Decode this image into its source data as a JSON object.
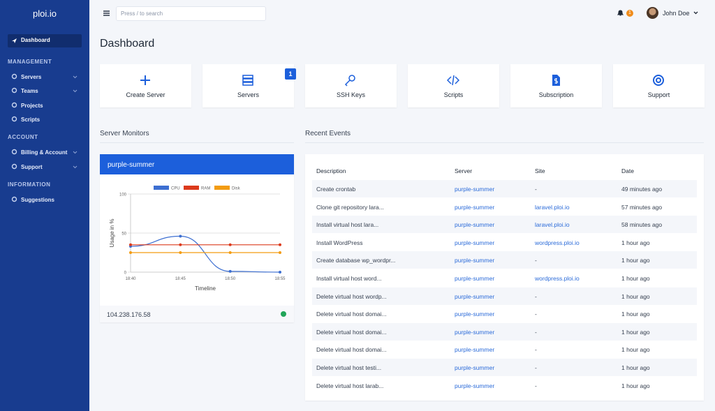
{
  "sidebar": {
    "brand": "ploi.io",
    "active": "Dashboard",
    "sections": [
      {
        "title": "MANAGEMENT",
        "items": [
          "Servers",
          "Teams",
          "Projects",
          "Scripts"
        ]
      },
      {
        "title": "ACCOUNT",
        "items": [
          "Billing & Account",
          "Support"
        ]
      },
      {
        "title": "INFORMATION",
        "items": [
          "Suggestions"
        ]
      }
    ]
  },
  "topbar": {
    "search_placeholder": "Press / to search",
    "notifications": 1,
    "user": "John Doe"
  },
  "page_title": "Dashboard",
  "tiles": [
    {
      "label": "Create Server"
    },
    {
      "label": "Servers",
      "badge": 1
    },
    {
      "label": "SSH Keys"
    },
    {
      "label": "Scripts"
    },
    {
      "label": "Subscription"
    },
    {
      "label": "Support"
    }
  ],
  "monitors": {
    "title": "Server Monitors",
    "server": "purple-summer",
    "ip": "104.238.176.58",
    "chart_data": {
      "type": "line",
      "y_label": "Usage in %",
      "x_label": "Timeline",
      "categories": [
        "18:40",
        "18:45",
        "18:50",
        "18:55"
      ],
      "ylim": [
        0,
        100
      ],
      "yticks": [
        0,
        50,
        100
      ],
      "series": [
        {
          "name": "CPU",
          "color": "#3d6fd1",
          "values": [
            33,
            46,
            1,
            0
          ]
        },
        {
          "name": "RAM",
          "color": "#dc3a1c",
          "values": [
            35,
            35,
            35,
            35
          ]
        },
        {
          "name": "Disk",
          "color": "#f39c12",
          "values": [
            25,
            25,
            25,
            25
          ]
        }
      ]
    }
  },
  "events": {
    "title": "Recent Events",
    "columns": [
      "Description",
      "Server",
      "Site",
      "Date"
    ],
    "rows": [
      [
        "Create crontab",
        "purple-summer",
        "-",
        "49 minutes ago"
      ],
      [
        "Clone git repository lara...",
        "purple-summer",
        "laravel.ploi.io",
        "57 minutes ago"
      ],
      [
        "Install virtual host lara...",
        "purple-summer",
        "laravel.ploi.io",
        "58 minutes ago"
      ],
      [
        "Install WordPress",
        "purple-summer",
        "wordpress.ploi.io",
        "1 hour ago"
      ],
      [
        "Create database wp_wordpr...",
        "purple-summer",
        "-",
        "1 hour ago"
      ],
      [
        "Install virtual host word...",
        "purple-summer",
        "wordpress.ploi.io",
        "1 hour ago"
      ],
      [
        "Delete virtual host wordp...",
        "purple-summer",
        "-",
        "1 hour ago"
      ],
      [
        "Delete virtual host domai...",
        "purple-summer",
        "-",
        "1 hour ago"
      ],
      [
        "Delete virtual host domai...",
        "purple-summer",
        "-",
        "1 hour ago"
      ],
      [
        "Delete virtual host domai...",
        "purple-summer",
        "-",
        "1 hour ago"
      ],
      [
        "Delete virtual host testi...",
        "purple-summer",
        "-",
        "1 hour ago"
      ],
      [
        "Delete virtual host larab...",
        "purple-summer",
        "-",
        "1 hour ago"
      ]
    ]
  }
}
